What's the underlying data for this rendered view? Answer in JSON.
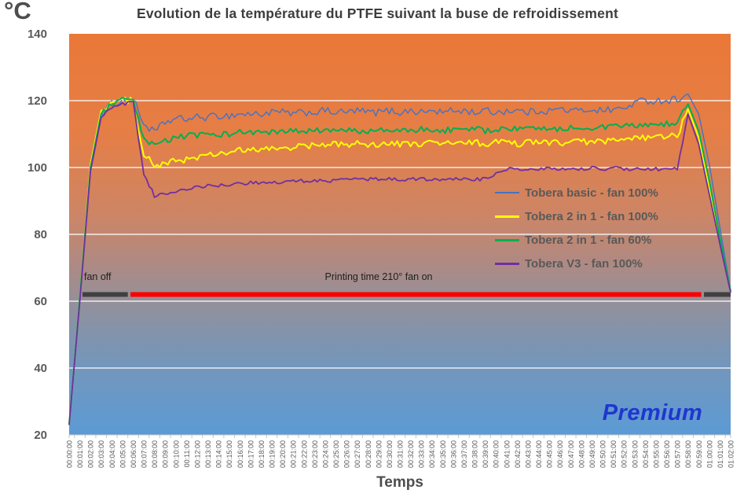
{
  "title": "Evolution de la température  du PTFE suivant la buse de refroidissement",
  "watermark": {
    "text": "Premium"
  },
  "y_axis": {
    "unit": "°C",
    "ticks": [
      140,
      120,
      100,
      80,
      60,
      40,
      20
    ]
  },
  "x_axis": {
    "title": "Temps"
  },
  "annotations": {
    "fan_off": {
      "text": "fan off"
    },
    "printing": {
      "text": "Printing time  210° fan on"
    },
    "bar": {
      "y_temp": 62,
      "segments": [
        {
          "from_min": 1.25,
          "to_min": 5.5,
          "color": "#404040"
        },
        {
          "from_min": 5.75,
          "to_min": 59.25,
          "color": "#fe0000"
        },
        {
          "from_min": 59.5,
          "to_min": 62.0,
          "color": "#404040"
        }
      ]
    }
  },
  "chart_data": {
    "type": "line",
    "title": "Evolution de la température du PTFE suivant la buse de refroidissement",
    "xlabel": "Temps",
    "ylabel": "°C",
    "ylim": [
      20,
      140
    ],
    "grid": true,
    "legend_position": "inside-right",
    "background_gradient": [
      {
        "offset": 0,
        "color": "#ea7838"
      },
      {
        "offset": 0.25,
        "color": "#e57e46"
      },
      {
        "offset": 0.45,
        "color": "#cd8565"
      },
      {
        "offset": 0.58,
        "color": "#ad8a85"
      },
      {
        "offset": 0.67,
        "color": "#93909a"
      },
      {
        "offset": 0.79,
        "color": "#7a95b5"
      },
      {
        "offset": 1,
        "color": "#5b9bd5"
      }
    ],
    "noise_window_min": [
      3.2,
      57.6
    ],
    "categories": [
      "00:00:00",
      "00:01:00",
      "00:02:00",
      "00:03:00",
      "00:04:00",
      "00:05:00",
      "00:06:00",
      "00:07:00",
      "00:08:00",
      "00:09:00",
      "00:10:00",
      "00:11:00",
      "00:12:00",
      "00:13:00",
      "00:14:00",
      "00:15:00",
      "00:16:00",
      "00:17:00",
      "00:18:00",
      "00:19:00",
      "00:20:00",
      "00:21:00",
      "00:22:00",
      "00:23:00",
      "00:24:00",
      "00:25:00",
      "00:26:00",
      "00:27:00",
      "00:28:00",
      "00:29:00",
      "00:30:00",
      "00:31:00",
      "00:32:00",
      "00:33:00",
      "00:34:00",
      "00:35:00",
      "00:36:00",
      "00:37:00",
      "00:38:00",
      "00:39:00",
      "00:40:00",
      "00:41:00",
      "00:42:00",
      "00:43:00",
      "00:44:00",
      "00:45:00",
      "00:46:00",
      "00:47:00",
      "00:48:00",
      "00:49:00",
      "00:50:00",
      "00:51:00",
      "00:52:00",
      "00:53:00",
      "00:54:00",
      "00:55:00",
      "00:56:00",
      "00:57:00",
      "00:58:00",
      "00:59:00",
      "01:00:00",
      "01:01:00",
      "01:02:00"
    ],
    "series": [
      {
        "name": "Tobera basic - fan 100%",
        "color": "#4472c4",
        "width": 1.4,
        "noise": 1.1,
        "values": [
          23,
          62,
          100,
          116,
          119,
          120,
          120.5,
          113,
          110.5,
          113.5,
          114.5,
          114.5,
          115,
          115,
          115.5,
          115.5,
          116,
          116,
          116,
          116.5,
          116.5,
          116,
          116.5,
          116.5,
          117,
          116.5,
          116.5,
          117,
          116.5,
          116.5,
          117,
          116.5,
          117,
          116.5,
          117,
          116.5,
          117,
          117,
          116.5,
          117,
          116.5,
          117,
          117,
          116.5,
          117,
          117,
          117.5,
          117,
          117,
          117.5,
          117,
          117.5,
          117.5,
          119.5,
          120,
          120,
          120,
          120.5,
          122,
          116,
          101,
          82,
          63
        ]
      },
      {
        "name": "Tobera 2 in 1 - fan 100%",
        "color": "#ffff00",
        "width": 2,
        "noise": 1.0,
        "values": [
          23,
          61,
          101,
          117,
          119.5,
          120,
          120,
          104,
          100.5,
          101,
          102,
          102.5,
          103,
          103.5,
          104,
          104.5,
          105,
          105,
          105.5,
          105.5,
          106,
          106,
          106.5,
          106.5,
          106.5,
          107,
          107,
          107,
          107,
          107,
          107,
          107,
          107,
          107,
          107.5,
          107,
          107.5,
          107,
          107.5,
          107,
          107.5,
          107.5,
          107,
          107.5,
          107.5,
          107.5,
          107.5,
          107.5,
          107.5,
          108,
          107.5,
          108,
          108,
          108.5,
          109,
          109,
          109,
          109.5,
          117.5,
          109,
          94,
          78,
          62.5
        ]
      },
      {
        "name": "Tobera 2 in 1 - fan 60%",
        "color": "#00b050",
        "width": 2,
        "noise": 0.9,
        "values": [
          23,
          61,
          100,
          116,
          119,
          120,
          120,
          108,
          106.5,
          108,
          109,
          109.5,
          109.5,
          110,
          110,
          110,
          110.5,
          110.5,
          110.5,
          110.5,
          110.5,
          111,
          110.5,
          111,
          111,
          111,
          111,
          111,
          111,
          111,
          111,
          111,
          111,
          111.5,
          111,
          111,
          111.5,
          111,
          111.5,
          111,
          111.5,
          111.5,
          111.5,
          111.5,
          111.5,
          112,
          111.5,
          112,
          112,
          112,
          112,
          112,
          112.5,
          112.5,
          112.5,
          113,
          113,
          113.5,
          119,
          111,
          96,
          79,
          63
        ]
      },
      {
        "name": "Tobera V3 - fan 100%",
        "color": "#7030a0",
        "width": 1.8,
        "noise": 0.5,
        "values": [
          23,
          60,
          99,
          115,
          118,
          119,
          119.5,
          98,
          91.5,
          92,
          93,
          93.5,
          94,
          94.5,
          94.5,
          95,
          95,
          95.5,
          95.5,
          95.5,
          95.5,
          96,
          96,
          96,
          96,
          96,
          96.5,
          96.5,
          96.5,
          96.5,
          96.5,
          96.5,
          96.5,
          96.5,
          96.5,
          96.5,
          96.5,
          96.5,
          96.5,
          96.5,
          98,
          99.5,
          99.5,
          99.5,
          99.5,
          100,
          99.5,
          100,
          99.5,
          100,
          99.5,
          100,
          99.5,
          99.5,
          99.5,
          99.5,
          99.5,
          99.5,
          116,
          107,
          92,
          77,
          62.5
        ]
      }
    ]
  },
  "style_colors": {
    "gridline": "#ffffff",
    "axis_text": "#595959",
    "tick_line": "#c3c3c3",
    "title_text": "#3d3d3d",
    "premium_blue": "#1f36d0"
  }
}
